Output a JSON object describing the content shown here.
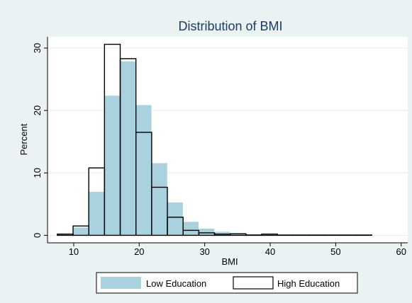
{
  "chart_data": {
    "type": "bar",
    "title": "Distribution of BMI",
    "xlabel": "BMI",
    "ylabel": "Percent",
    "xlim": [
      6,
      61
    ],
    "ylim": [
      -1.2,
      31.8
    ],
    "xticks": [
      10,
      20,
      30,
      40,
      50,
      60
    ],
    "yticks": [
      0,
      10,
      20,
      30
    ],
    "grid": true,
    "legend_position": "bottom",
    "bin_edges": [
      7.5,
      9.9,
      12.3,
      14.7,
      17.1,
      19.5,
      21.9,
      24.3,
      26.7,
      29.1,
      31.5,
      33.9,
      36.3,
      38.7,
      41.1,
      43.5,
      45.9,
      48.3,
      50.7,
      53.1,
      55.5
    ],
    "series": [
      {
        "name": "Low Education",
        "color": "#a9d1de",
        "style": "filled",
        "values": [
          0.3,
          1.3,
          7.0,
          22.4,
          27.9,
          20.9,
          11.6,
          5.3,
          2.2,
          1.1,
          0.6,
          0.3,
          0.2,
          0.15,
          0.1,
          0.05,
          0.05,
          0.05,
          0.05,
          0.02
        ]
      },
      {
        "name": "High Education",
        "color": "#000000",
        "style": "outline",
        "values": [
          0.2,
          1.5,
          10.8,
          30.6,
          28.3,
          16.5,
          7.7,
          2.9,
          0.8,
          0.4,
          0.2,
          0.25,
          0.05,
          0.2,
          0.05,
          0.05,
          0.05,
          0.05,
          0.05,
          0.05
        ]
      }
    ]
  }
}
